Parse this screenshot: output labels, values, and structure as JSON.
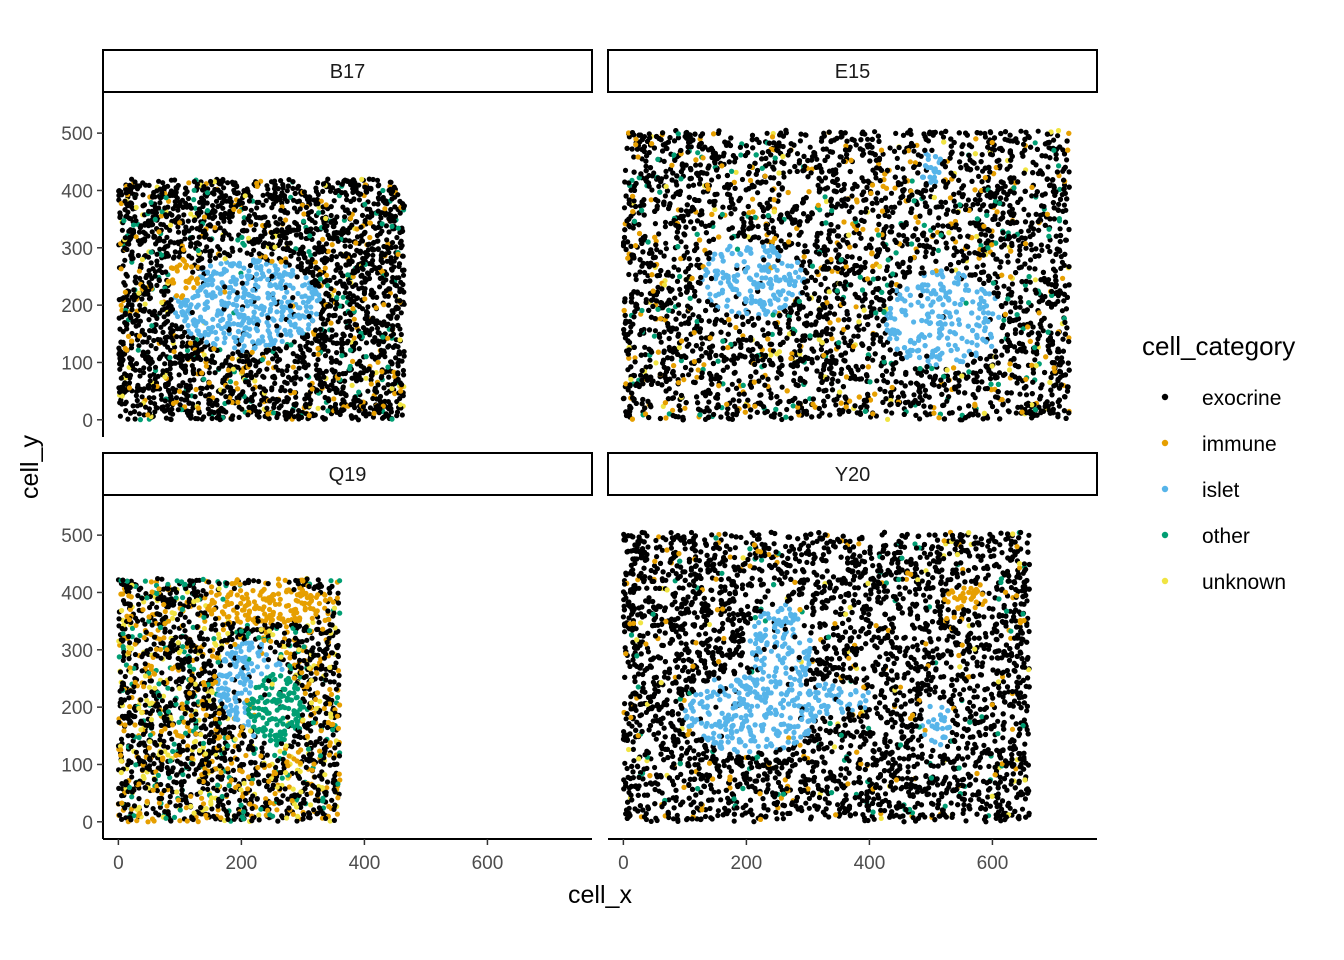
{
  "chart_data": {
    "type": "scatter",
    "xlabel": "cell_x",
    "ylabel": "cell_y",
    "xlim": [
      -25,
      770
    ],
    "ylim": [
      -30,
      570
    ],
    "x_ticks": [
      0,
      200,
      400,
      600
    ],
    "y_ticks": [
      0,
      100,
      200,
      300,
      400,
      500
    ],
    "x_tick_labels": [
      "0",
      "200",
      "400",
      "600"
    ],
    "y_tick_labels": [
      "0",
      "100",
      "200",
      "300",
      "400",
      "500"
    ],
    "grid": false,
    "legend": {
      "title": "cell_category",
      "placement": "right",
      "entries": [
        {
          "label": "exocrine",
          "color": "#000000"
        },
        {
          "label": "immune",
          "color": "#E69F00"
        },
        {
          "label": "islet",
          "color": "#56B4E9"
        },
        {
          "label": "other",
          "color": "#009E73"
        },
        {
          "label": "unknown",
          "color": "#F0E442"
        }
      ]
    },
    "facets": [
      {
        "label": "B17",
        "extent": {
          "x": [
            0,
            465
          ],
          "y": [
            0,
            420
          ]
        },
        "background": {
          "exocrine": 0.84,
          "immune": 0.08,
          "other": 0.05,
          "unknown": 0.03
        },
        "regions": [
          {
            "category": "islet",
            "cx": 210,
            "cy": 200,
            "rx": 120,
            "ry": 80
          },
          {
            "category": "immune",
            "cx": 105,
            "cy": 245,
            "rx": 25,
            "ry": 35
          }
        ],
        "points": [
          {
            "x": 130,
            "y": 200,
            "category": "islet"
          },
          {
            "x": 200,
            "y": 250,
            "category": "islet"
          },
          {
            "x": 280,
            "y": 190,
            "category": "islet"
          },
          {
            "x": 240,
            "y": 130,
            "category": "islet"
          },
          {
            "x": 100,
            "y": 270,
            "category": "immune"
          },
          {
            "x": 110,
            "y": 230,
            "category": "immune"
          },
          {
            "x": 430,
            "y": 400,
            "category": "other"
          },
          {
            "x": 380,
            "y": 60,
            "category": "unknown"
          }
        ]
      },
      {
        "label": "E15",
        "extent": {
          "x": [
            0,
            725
          ],
          "y": [
            0,
            505
          ]
        },
        "background": {
          "exocrine": 0.82,
          "immune": 0.09,
          "other": 0.06,
          "unknown": 0.03
        },
        "regions": [
          {
            "category": "islet",
            "cx": 210,
            "cy": 245,
            "rx": 85,
            "ry": 65
          },
          {
            "category": "islet",
            "cx": 520,
            "cy": 175,
            "rx": 95,
            "ry": 85
          },
          {
            "category": "islet",
            "cx": 500,
            "cy": 440,
            "rx": 18,
            "ry": 30
          }
        ],
        "points": [
          {
            "x": 180,
            "y": 250,
            "category": "islet"
          },
          {
            "x": 240,
            "y": 230,
            "category": "islet"
          },
          {
            "x": 500,
            "y": 200,
            "category": "islet"
          },
          {
            "x": 540,
            "y": 150,
            "category": "islet"
          },
          {
            "x": 500,
            "y": 440,
            "category": "islet"
          },
          {
            "x": 20,
            "y": 480,
            "category": "immune"
          },
          {
            "x": 100,
            "y": 20,
            "category": "immune"
          },
          {
            "x": 380,
            "y": 380,
            "category": "immune"
          },
          {
            "x": 700,
            "y": 470,
            "category": "other"
          }
        ]
      },
      {
        "label": "Q19",
        "extent": {
          "x": [
            0,
            360
          ],
          "y": [
            0,
            425
          ]
        },
        "background": {
          "exocrine": 0.6,
          "immune": 0.2,
          "other": 0.1,
          "unknown": 0.1
        },
        "regions": [
          {
            "category": "islet",
            "cx": 215,
            "cy": 240,
            "rx": 55,
            "ry": 75
          },
          {
            "category": "other",
            "cx": 255,
            "cy": 200,
            "rx": 45,
            "ry": 60
          },
          {
            "category": "immune",
            "cx": 240,
            "cy": 380,
            "rx": 110,
            "ry": 35
          }
        ],
        "points": [
          {
            "x": 200,
            "y": 260,
            "category": "islet"
          },
          {
            "x": 220,
            "y": 150,
            "category": "islet"
          },
          {
            "x": 250,
            "y": 180,
            "category": "other"
          },
          {
            "x": 270,
            "y": 120,
            "category": "other"
          },
          {
            "x": 300,
            "y": 420,
            "category": "immune"
          },
          {
            "x": 40,
            "y": 370,
            "category": "immune"
          },
          {
            "x": 250,
            "y": 240,
            "category": "unknown"
          }
        ]
      },
      {
        "label": "Y20",
        "extent": {
          "x": [
            0,
            660
          ],
          "y": [
            0,
            505
          ]
        },
        "background": {
          "exocrine": 0.9,
          "immune": 0.05,
          "other": 0.03,
          "unknown": 0.02
        },
        "regions": [
          {
            "category": "islet",
            "cx": 210,
            "cy": 190,
            "rx": 110,
            "ry": 70
          },
          {
            "category": "islet",
            "cx": 255,
            "cy": 300,
            "rx": 50,
            "ry": 80
          },
          {
            "category": "islet",
            "cx": 340,
            "cy": 215,
            "rx": 65,
            "ry": 28
          },
          {
            "category": "islet",
            "cx": 510,
            "cy": 170,
            "rx": 25,
            "ry": 40
          },
          {
            "category": "immune",
            "cx": 555,
            "cy": 390,
            "rx": 35,
            "ry": 20
          }
        ],
        "points": [
          {
            "x": 200,
            "y": 200,
            "category": "islet"
          },
          {
            "x": 260,
            "y": 320,
            "category": "islet"
          },
          {
            "x": 350,
            "y": 210,
            "category": "islet"
          },
          {
            "x": 510,
            "y": 170,
            "category": "islet"
          },
          {
            "x": 640,
            "y": 480,
            "category": "immune"
          },
          {
            "x": 555,
            "y": 390,
            "category": "immune"
          },
          {
            "x": 180,
            "y": 40,
            "category": "other"
          }
        ]
      }
    ]
  }
}
